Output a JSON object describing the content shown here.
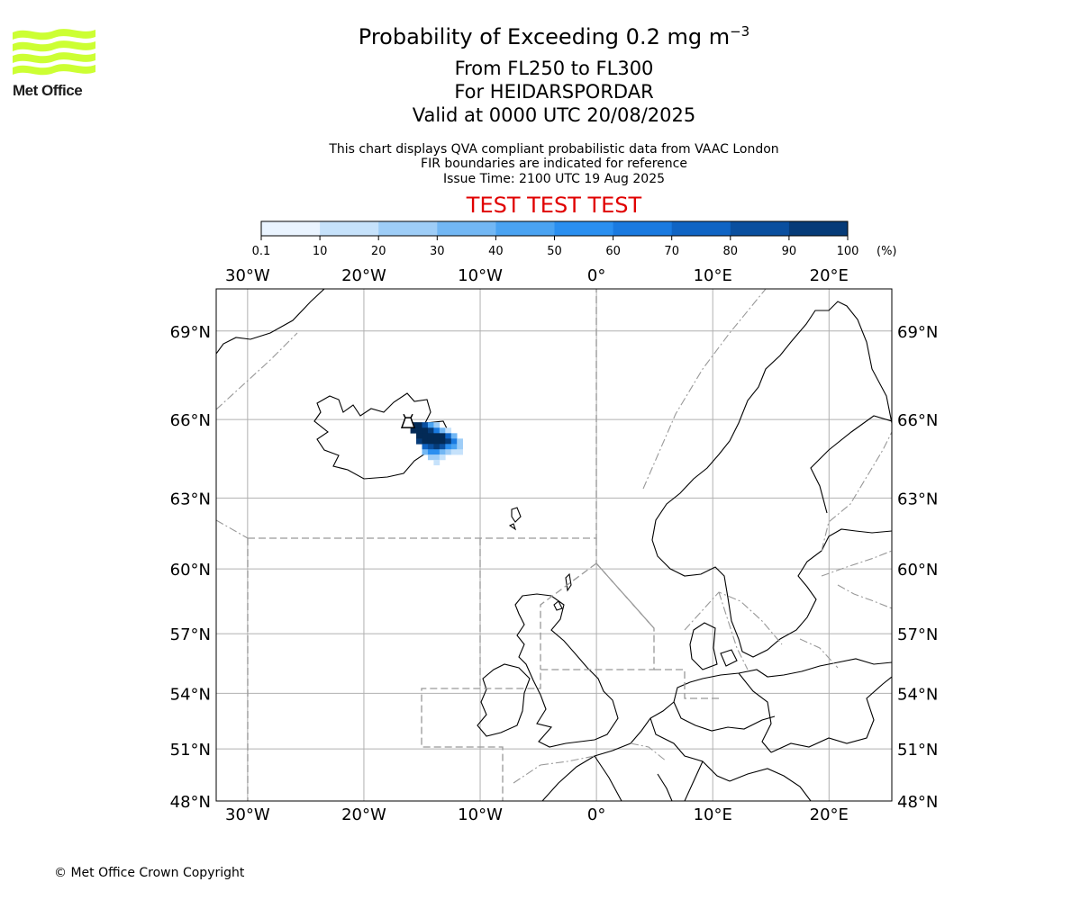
{
  "header": {
    "title_main": "Probability of Exceeding 0.2 mg m",
    "title_sup": "−3",
    "line2": "From FL250 to FL300",
    "line3": "For HEIDARSPORDAR",
    "line4": "Valid at 0000 UTC 20/08/2025",
    "note1": "This chart displays QVA compliant probabilistic data from VAAC London",
    "note2": "FIR boundaries are indicated for reference",
    "note3": "Issue Time: 2100 UTC 19 Aug 2025",
    "banner": "TEST TEST TEST"
  },
  "logo": {
    "text": "Met Office",
    "color": "#ccff33"
  },
  "colorbar": {
    "ticks": [
      "0.1",
      "10",
      "20",
      "30",
      "40",
      "50",
      "60",
      "70",
      "80",
      "90",
      "100"
    ],
    "unit": "(%)",
    "colors": [
      "#eaf4ff",
      "#c6e2fb",
      "#9ecdf7",
      "#72b7f4",
      "#4aa3f2",
      "#2a8ff0",
      "#1a7ae0",
      "#0f64c4",
      "#0a4f9f",
      "#063b78",
      "#032a56"
    ]
  },
  "map": {
    "lon_range": [
      -32.7,
      25.4
    ],
    "lat_range": [
      48,
      70.3
    ],
    "lon_ticks": [
      {
        "value": -30,
        "label": "30°W"
      },
      {
        "value": -20,
        "label": "20°W"
      },
      {
        "value": -10,
        "label": "10°W"
      },
      {
        "value": 0,
        "label": "0°"
      },
      {
        "value": 10,
        "label": "10°E"
      },
      {
        "value": 20,
        "label": "20°E"
      }
    ],
    "lat_ticks": [
      {
        "value": 69,
        "label": "69°N"
      },
      {
        "value": 66,
        "label": "66°N"
      },
      {
        "value": 63,
        "label": "63°N"
      },
      {
        "value": 60,
        "label": "60°N"
      },
      {
        "value": 57,
        "label": "57°N"
      },
      {
        "value": 54,
        "label": "54°N"
      },
      {
        "value": 51,
        "label": "51°N"
      },
      {
        "value": 48,
        "label": "48°N"
      }
    ],
    "volcano": {
      "name": "HEIDARSPORDAR",
      "lon": -16.2,
      "lat": 65.9
    },
    "probability_cells_deg": 0.5,
    "probability_cells": [
      [
        -16.0,
        65.7,
        100
      ],
      [
        -15.5,
        65.7,
        100
      ],
      [
        -15.0,
        65.7,
        80
      ],
      [
        -14.5,
        65.7,
        40
      ],
      [
        -14.0,
        65.7,
        20
      ],
      [
        -16.0,
        65.5,
        100
      ],
      [
        -15.5,
        65.5,
        100
      ],
      [
        -15.0,
        65.5,
        100
      ],
      [
        -14.5,
        65.5,
        90
      ],
      [
        -14.0,
        65.5,
        60
      ],
      [
        -13.5,
        65.5,
        30
      ],
      [
        -13.0,
        65.5,
        10
      ],
      [
        -15.5,
        65.3,
        100
      ],
      [
        -15.0,
        65.3,
        100
      ],
      [
        -14.5,
        65.3,
        100
      ],
      [
        -14.0,
        65.3,
        100
      ],
      [
        -13.5,
        65.3,
        100
      ],
      [
        -13.0,
        65.3,
        70
      ],
      [
        -12.5,
        65.3,
        30
      ],
      [
        -15.5,
        65.1,
        90
      ],
      [
        -15.0,
        65.1,
        100
      ],
      [
        -14.5,
        65.1,
        100
      ],
      [
        -14.0,
        65.1,
        100
      ],
      [
        -13.5,
        65.1,
        100
      ],
      [
        -13.0,
        65.1,
        90
      ],
      [
        -12.5,
        65.1,
        60
      ],
      [
        -12.0,
        65.1,
        20
      ],
      [
        -15.0,
        64.9,
        70
      ],
      [
        -14.5,
        64.9,
        80
      ],
      [
        -14.0,
        64.9,
        90
      ],
      [
        -13.5,
        64.9,
        80
      ],
      [
        -13.0,
        64.9,
        50
      ],
      [
        -12.5,
        64.9,
        40
      ],
      [
        -12.0,
        64.9,
        20
      ],
      [
        -15.0,
        64.7,
        30
      ],
      [
        -14.5,
        64.7,
        50
      ],
      [
        -14.0,
        64.7,
        50
      ],
      [
        -13.5,
        64.7,
        30
      ],
      [
        -13.0,
        64.7,
        20
      ],
      [
        -12.5,
        64.7,
        10
      ],
      [
        -12.0,
        64.7,
        10
      ],
      [
        -14.5,
        64.5,
        20
      ],
      [
        -14.0,
        64.5,
        20
      ],
      [
        -13.5,
        64.5,
        10
      ],
      [
        -14.0,
        64.3,
        10
      ]
    ]
  },
  "footer": {
    "copyright": "© Met Office Crown Copyright"
  }
}
